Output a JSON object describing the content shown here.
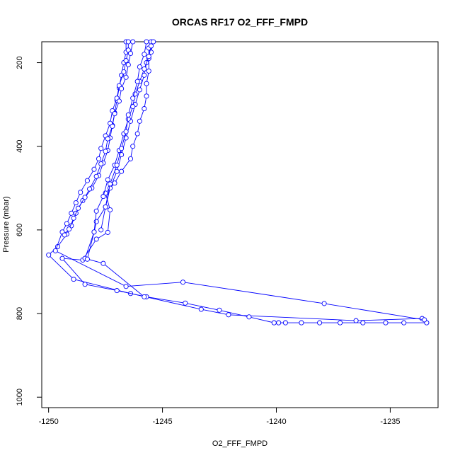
{
  "chart_data": {
    "type": "line",
    "title": "ORCAS RF17 O2_FFF_FMPD",
    "xlabel": "O2_FFF_FMPD",
    "ylabel": "Pressure (mbar)",
    "xlim": [
      -1250.3,
      -1232.9
    ],
    "ylim": [
      1025,
      150
    ],
    "y_reversed": true,
    "x_ticks": [
      -1250,
      -1245,
      -1240,
      -1235
    ],
    "x_tick_labels": [
      "-1250",
      "-1245",
      "-1240",
      "-1235"
    ],
    "y_ticks": [
      200,
      400,
      600,
      800,
      1000
    ],
    "y_tick_labels": [
      "200",
      "400",
      "600",
      "800",
      "1000"
    ],
    "grid": false,
    "marker": "open-circle",
    "color": "#0000ff",
    "series": [
      {
        "points": [
          [
            -1246.6,
            150
          ],
          [
            -1246.6,
            175
          ],
          [
            -1246.7,
            200
          ],
          [
            -1246.8,
            230
          ],
          [
            -1246.9,
            260
          ],
          [
            -1247.0,
            290
          ],
          [
            -1247.1,
            320
          ],
          [
            -1247.2,
            350
          ],
          [
            -1247.3,
            380
          ],
          [
            -1247.4,
            410
          ],
          [
            -1247.6,
            440
          ],
          [
            -1247.8,
            470
          ],
          [
            -1248.1,
            500
          ],
          [
            -1248.5,
            530
          ],
          [
            -1248.8,
            560
          ],
          [
            -1249.0,
            590
          ],
          [
            -1249.2,
            610
          ],
          [
            -1249.6,
            640
          ],
          [
            -1250.0,
            660
          ],
          [
            -1248.9,
            718
          ],
          [
            -1246.4,
            752
          ],
          [
            -1243.3,
            790
          ],
          [
            -1242.1,
            803
          ],
          [
            -1236.5,
            817
          ],
          [
            -1233.6,
            812
          ]
        ]
      },
      {
        "points": [
          [
            -1233.4,
            822
          ],
          [
            -1234.4,
            822
          ],
          [
            -1235.2,
            822
          ],
          [
            -1236.2,
            822
          ],
          [
            -1237.2,
            822
          ],
          [
            -1238.1,
            822
          ],
          [
            -1238.9,
            822
          ],
          [
            -1239.6,
            822
          ],
          [
            -1239.9,
            822
          ],
          [
            -1240.1,
            822
          ],
          [
            -1241.2,
            808
          ],
          [
            -1242.5,
            792
          ],
          [
            -1244.0,
            775
          ],
          [
            -1245.7,
            760
          ],
          [
            -1247.0,
            745
          ],
          [
            -1248.4,
            730
          ],
          [
            -1249.4,
            668
          ],
          [
            -1248.5,
            672
          ],
          [
            -1247.9,
            622
          ],
          [
            -1247.4,
            606
          ],
          [
            -1247.3,
            552
          ],
          [
            -1247.5,
            512
          ],
          [
            -1247.1,
            488
          ],
          [
            -1246.8,
            460
          ],
          [
            -1246.4,
            430
          ],
          [
            -1246.3,
            400
          ],
          [
            -1246.1,
            370
          ],
          [
            -1246.0,
            340
          ],
          [
            -1245.8,
            310
          ],
          [
            -1245.7,
            280
          ],
          [
            -1245.7,
            250
          ],
          [
            -1245.6,
            220
          ],
          [
            -1245.6,
            190
          ],
          [
            -1245.6,
            165
          ],
          [
            -1245.5,
            150
          ]
        ]
      },
      {
        "points": [
          [
            -1246.5,
            150
          ],
          [
            -1246.5,
            170
          ],
          [
            -1246.6,
            195
          ],
          [
            -1246.7,
            222
          ],
          [
            -1246.9,
            255
          ],
          [
            -1247.0,
            285
          ],
          [
            -1247.2,
            315
          ],
          [
            -1247.3,
            345
          ],
          [
            -1247.5,
            375
          ],
          [
            -1247.7,
            405
          ],
          [
            -1247.8,
            430
          ],
          [
            -1248.0,
            455
          ],
          [
            -1248.3,
            482
          ],
          [
            -1248.6,
            510
          ],
          [
            -1248.8,
            535
          ],
          [
            -1249.0,
            560
          ],
          [
            -1249.2,
            585
          ],
          [
            -1249.4,
            605
          ],
          [
            -1249.7,
            650
          ],
          [
            -1246.6,
            735
          ],
          [
            -1244.1,
            725
          ],
          [
            -1237.9,
            776
          ],
          [
            -1233.5,
            815
          ]
        ]
      },
      {
        "points": [
          [
            -1245.4,
            150
          ],
          [
            -1245.5,
            175
          ],
          [
            -1245.7,
            200
          ],
          [
            -1245.8,
            230
          ],
          [
            -1246.0,
            265
          ],
          [
            -1246.2,
            300
          ],
          [
            -1246.4,
            340
          ],
          [
            -1246.6,
            380
          ],
          [
            -1246.8,
            420
          ],
          [
            -1247.0,
            460
          ],
          [
            -1247.3,
            500
          ],
          [
            -1247.5,
            545
          ],
          [
            -1247.9,
            580
          ],
          [
            -1248.0,
            605
          ],
          [
            -1248.4,
            668
          ],
          [
            -1247.6,
            680
          ],
          [
            -1245.8,
            760
          ]
        ]
      },
      {
        "points": [
          [
            -1245.5,
            160
          ],
          [
            -1245.6,
            185
          ],
          [
            -1245.8,
            215
          ],
          [
            -1246.0,
            245
          ],
          [
            -1246.2,
            275
          ],
          [
            -1246.3,
            305
          ],
          [
            -1246.5,
            335
          ],
          [
            -1246.7,
            370
          ],
          [
            -1246.9,
            410
          ],
          [
            -1247.1,
            445
          ],
          [
            -1247.4,
            480
          ],
          [
            -1247.6,
            520
          ],
          [
            -1247.9,
            555
          ],
          [
            -1248.0,
            605
          ],
          [
            -1248.3,
            670
          ]
        ]
      },
      {
        "points": [
          [
            -1245.7,
            150
          ],
          [
            -1245.8,
            180
          ],
          [
            -1246.0,
            210
          ],
          [
            -1246.1,
            245
          ],
          [
            -1246.3,
            285
          ],
          [
            -1246.5,
            325
          ],
          [
            -1246.6,
            365
          ],
          [
            -1246.8,
            405
          ],
          [
            -1247.0,
            445
          ],
          [
            -1247.3,
            490
          ],
          [
            -1247.5,
            545
          ],
          [
            -1247.7,
            600
          ]
        ]
      },
      {
        "points": [
          [
            -1246.3,
            150
          ],
          [
            -1246.4,
            178
          ],
          [
            -1246.5,
            205
          ],
          [
            -1246.6,
            235
          ],
          [
            -1246.8,
            262
          ],
          [
            -1246.9,
            292
          ],
          [
            -1247.1,
            322
          ],
          [
            -1247.2,
            352
          ],
          [
            -1247.4,
            382
          ],
          [
            -1247.5,
            412
          ],
          [
            -1247.7,
            442
          ],
          [
            -1247.9,
            472
          ],
          [
            -1248.2,
            502
          ],
          [
            -1248.4,
            522
          ],
          [
            -1248.7,
            548
          ],
          [
            -1248.9,
            572
          ],
          [
            -1249.1,
            598
          ],
          [
            -1249.3,
            612
          ]
        ]
      }
    ]
  }
}
